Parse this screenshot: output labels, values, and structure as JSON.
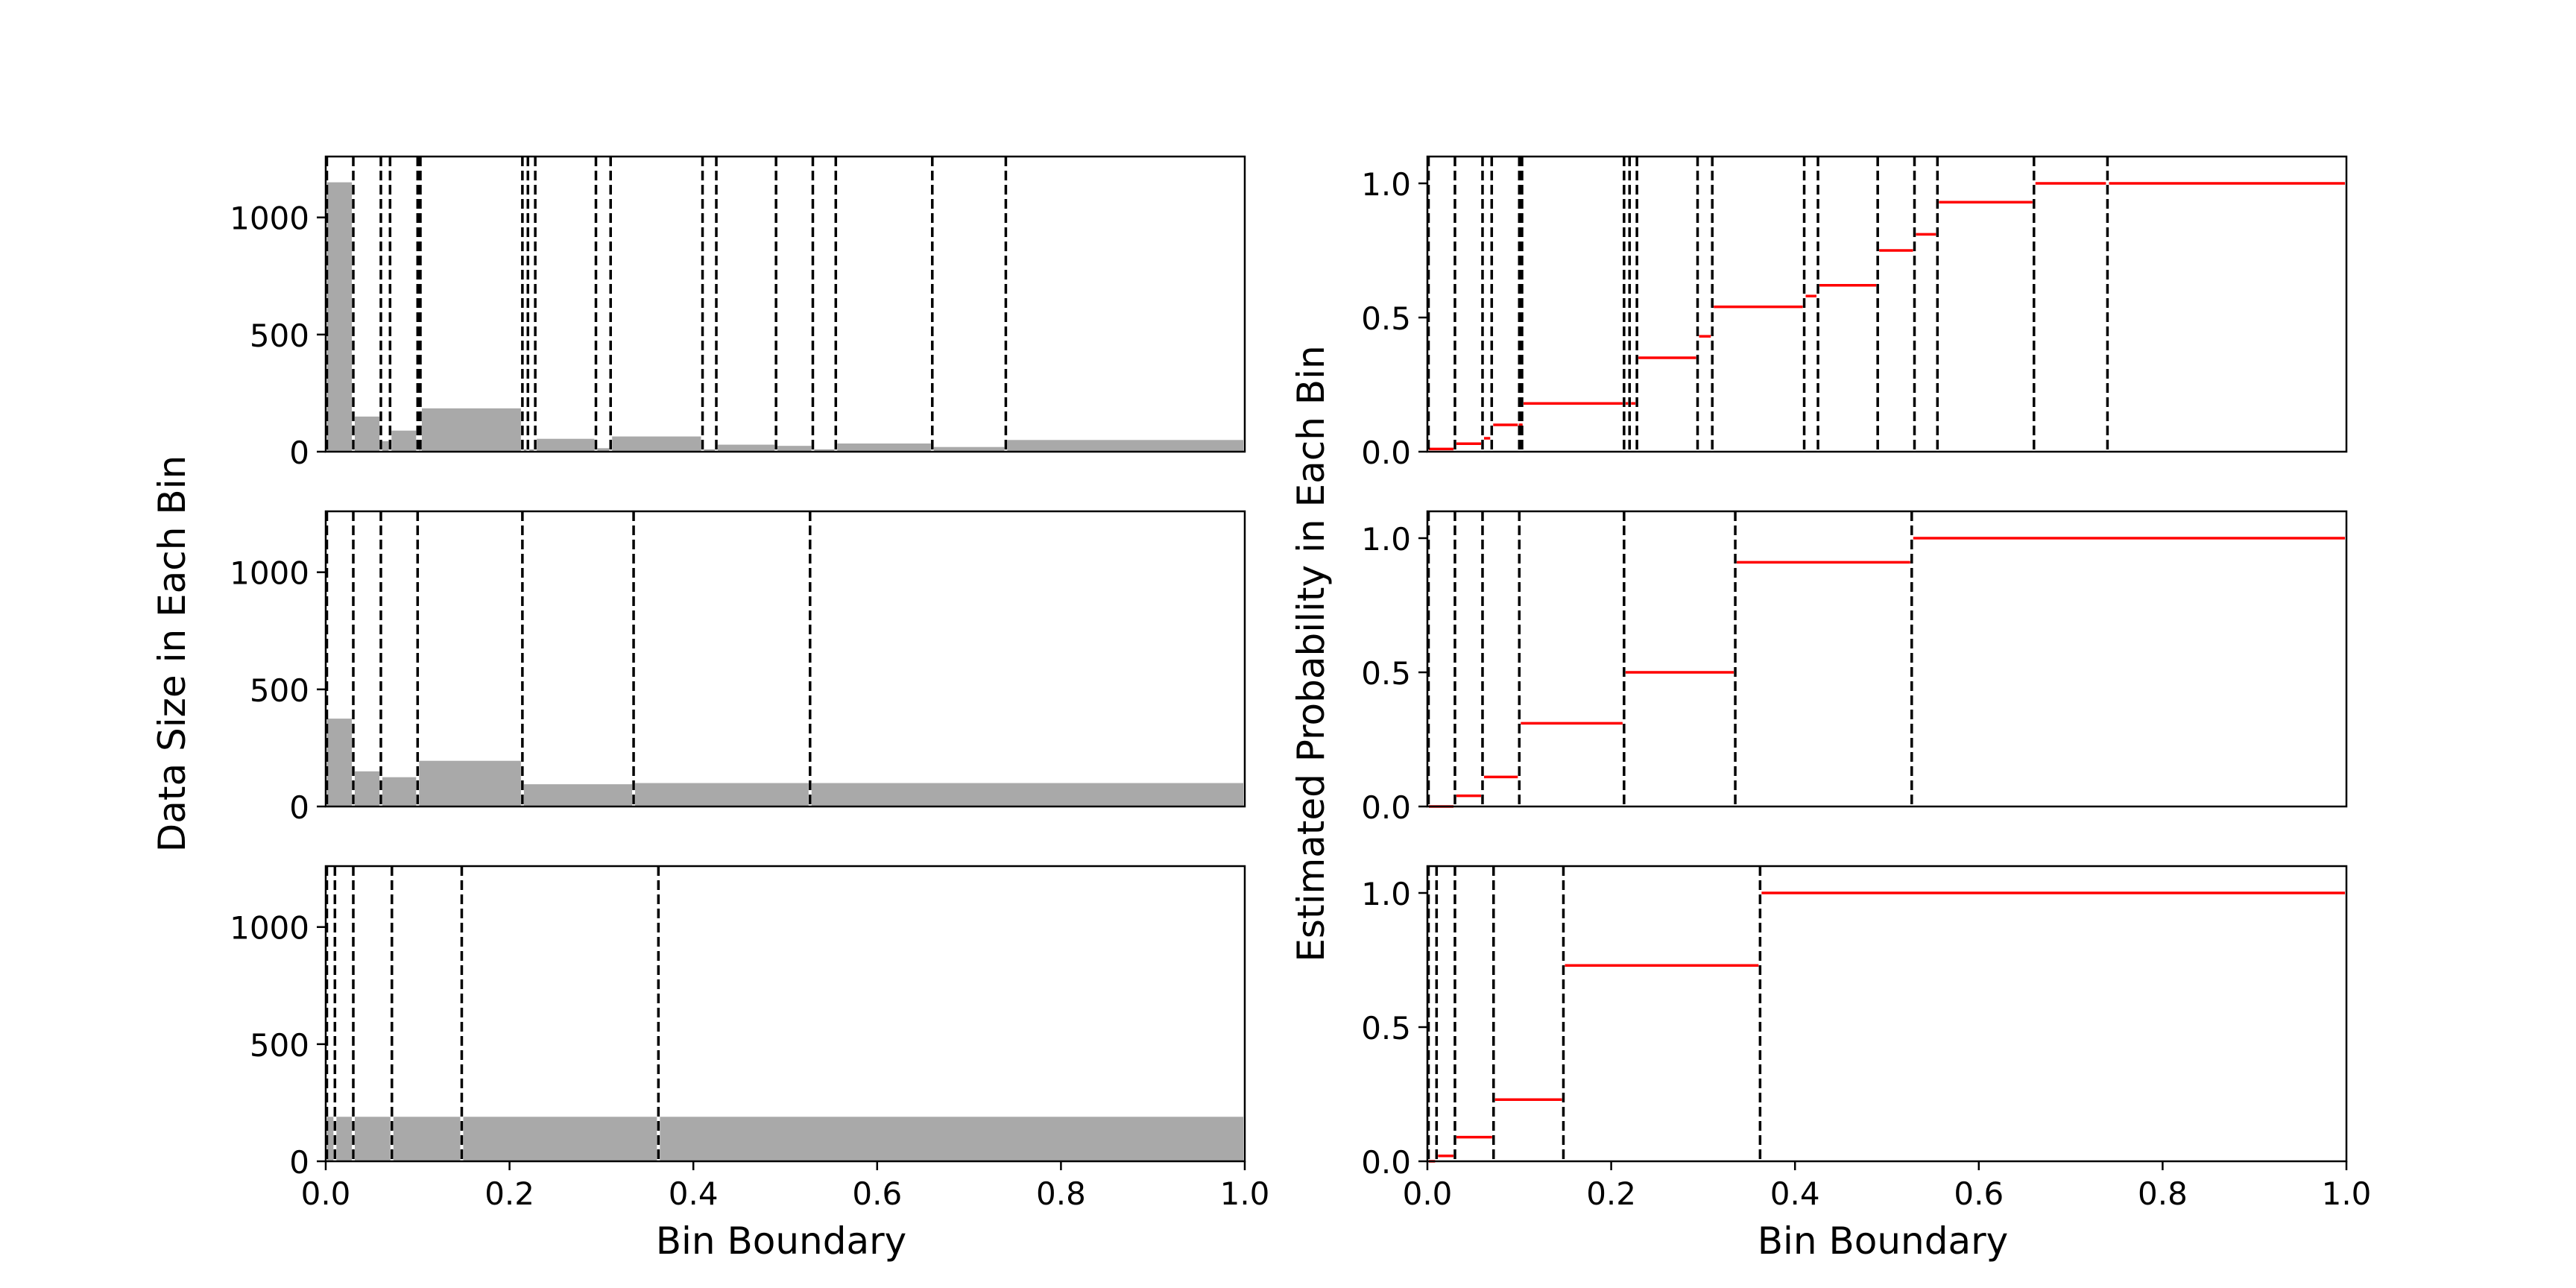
{
  "labels": {
    "left_ylabel": "Data Size in Each Bin",
    "right_ylabel": "Estimated Probability in Each Bin",
    "xlabel": "Bin Boundary"
  },
  "colors": {
    "bar": "#a9a9a9",
    "step": "#ff0000",
    "boundary": "#000000"
  },
  "chart_data": [
    {
      "type": "bar",
      "panel": "left-top",
      "xlim": [
        0,
        1
      ],
      "ylim": [
        0,
        1260
      ],
      "yticks": [
        0,
        500,
        1000
      ],
      "xticks": [
        0.0,
        0.2,
        0.4,
        0.6,
        0.8,
        1.0
      ],
      "xticklabels": [
        "0.0",
        "0.2",
        "0.4",
        "0.6",
        "0.8",
        "1.0"
      ],
      "xticks_visible": false,
      "edges": [
        0,
        0.03,
        0.06,
        0.07,
        0.1,
        0.101,
        0.102,
        0.103,
        0.214,
        0.22,
        0.228,
        0.294,
        0.31,
        0.41,
        0.425,
        0.49,
        0.53,
        0.555,
        0.66,
        0.74,
        1.0
      ],
      "values": [
        1150,
        150,
        45,
        90,
        15,
        15,
        15,
        185,
        10,
        10,
        55,
        15,
        65,
        10,
        30,
        25,
        10,
        35,
        20,
        50
      ],
      "boundaries": [
        0.03,
        0.06,
        0.07,
        0.1,
        0.101,
        0.102,
        0.103,
        0.214,
        0.22,
        0.228,
        0.294,
        0.31,
        0.41,
        0.425,
        0.49,
        0.53,
        0.555,
        0.66,
        0.74
      ]
    },
    {
      "type": "bar",
      "panel": "left-middle",
      "xlim": [
        0,
        1
      ],
      "ylim": [
        0,
        1260
      ],
      "yticks": [
        0,
        500,
        1000
      ],
      "xticks": [
        0.0,
        0.2,
        0.4,
        0.6,
        0.8,
        1.0
      ],
      "xticklabels": [
        "0.0",
        "0.2",
        "0.4",
        "0.6",
        "0.8",
        "1.0"
      ],
      "xticks_visible": false,
      "edges": [
        0,
        0.03,
        0.06,
        0.1,
        0.214,
        0.335,
        0.527,
        1.0
      ],
      "values": [
        375,
        150,
        125,
        195,
        95,
        100,
        100
      ],
      "boundaries": [
        0.03,
        0.06,
        0.1,
        0.214,
        0.335,
        0.527
      ]
    },
    {
      "type": "bar",
      "panel": "left-bottom",
      "xlim": [
        0,
        1
      ],
      "ylim": [
        0,
        1260
      ],
      "yticks": [
        0,
        500,
        1000
      ],
      "xticks": [
        0.0,
        0.2,
        0.4,
        0.6,
        0.8,
        1.0
      ],
      "xticklabels": [
        "0.0",
        "0.2",
        "0.4",
        "0.6",
        "0.8",
        "1.0"
      ],
      "xticks_visible": true,
      "edges": [
        0,
        0.01,
        0.03,
        0.072,
        0.148,
        0.362,
        1.0
      ],
      "values": [
        190,
        190,
        190,
        190,
        190,
        190
      ],
      "boundaries": [
        0.01,
        0.03,
        0.072,
        0.148,
        0.362
      ]
    },
    {
      "type": "line",
      "panel": "right-top",
      "xlim": [
        0,
        1
      ],
      "ylim": [
        0,
        1.1
      ],
      "yticks": [
        0.0,
        0.5,
        1.0
      ],
      "yticklabels": [
        "0.0",
        "0.5",
        "1.0"
      ],
      "xticks": [
        0.0,
        0.2,
        0.4,
        0.6,
        0.8,
        1.0
      ],
      "xticklabels": [
        "0.0",
        "0.2",
        "0.4",
        "0.6",
        "0.8",
        "1.0"
      ],
      "xticks_visible": false,
      "edges": [
        0,
        0.03,
        0.06,
        0.07,
        0.1,
        0.101,
        0.102,
        0.103,
        0.214,
        0.22,
        0.228,
        0.294,
        0.31,
        0.41,
        0.425,
        0.49,
        0.53,
        0.555,
        0.66,
        0.74,
        1.0
      ],
      "values": [
        0.01,
        0.03,
        0.05,
        0.1,
        0.1,
        0.1,
        0.1,
        0.18,
        0.18,
        0.18,
        0.35,
        0.43,
        0.54,
        0.58,
        0.62,
        0.75,
        0.81,
        0.93,
        1.0,
        1.0
      ],
      "boundaries": [
        0.03,
        0.06,
        0.07,
        0.1,
        0.101,
        0.102,
        0.103,
        0.214,
        0.22,
        0.228,
        0.294,
        0.31,
        0.41,
        0.425,
        0.49,
        0.53,
        0.555,
        0.66,
        0.74
      ]
    },
    {
      "type": "line",
      "panel": "right-middle",
      "xlim": [
        0,
        1
      ],
      "ylim": [
        0,
        1.1
      ],
      "yticks": [
        0.0,
        0.5,
        1.0
      ],
      "yticklabels": [
        "0.0",
        "0.5",
        "1.0"
      ],
      "xticks": [
        0.0,
        0.2,
        0.4,
        0.6,
        0.8,
        1.0
      ],
      "xticklabels": [
        "0.0",
        "0.2",
        "0.4",
        "0.6",
        "0.8",
        "1.0"
      ],
      "xticks_visible": false,
      "edges": [
        0,
        0.03,
        0.06,
        0.1,
        0.214,
        0.335,
        0.527,
        1.0
      ],
      "values": [
        0.0,
        0.04,
        0.11,
        0.31,
        0.5,
        0.91,
        1.0
      ],
      "boundaries": [
        0.03,
        0.06,
        0.1,
        0.214,
        0.335,
        0.527
      ]
    },
    {
      "type": "line",
      "panel": "right-bottom",
      "xlim": [
        0,
        1
      ],
      "ylim": [
        0,
        1.1
      ],
      "yticks": [
        0.0,
        0.5,
        1.0
      ],
      "yticklabels": [
        "0.0",
        "0.5",
        "1.0"
      ],
      "xticks": [
        0.0,
        0.2,
        0.4,
        0.6,
        0.8,
        1.0
      ],
      "xticklabels": [
        "0.0",
        "0.2",
        "0.4",
        "0.6",
        "0.8",
        "1.0"
      ],
      "xticks_visible": true,
      "edges": [
        0,
        0.01,
        0.03,
        0.072,
        0.148,
        0.362,
        1.0
      ],
      "values": [
        0.0,
        0.02,
        0.09,
        0.23,
        0.73,
        1.0
      ],
      "boundaries": [
        0.01,
        0.03,
        0.072,
        0.148,
        0.362
      ]
    }
  ]
}
